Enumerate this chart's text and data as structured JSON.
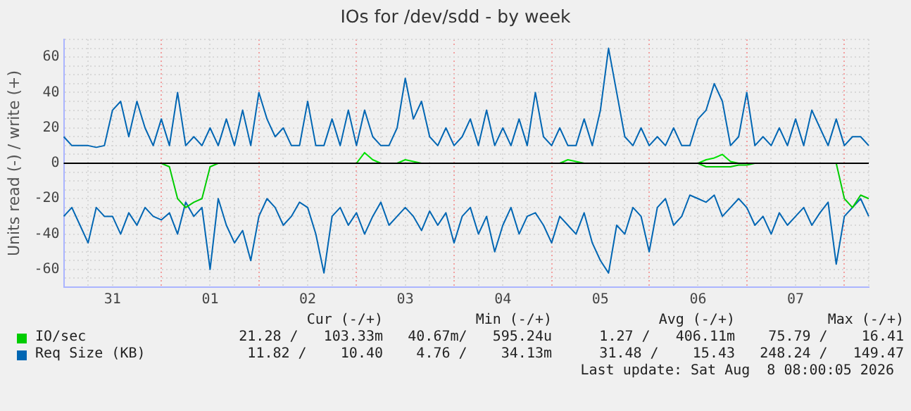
{
  "chart_data": {
    "type": "line",
    "title": "IOs for /dev/sdd - by week",
    "ylabel": "Units read (-) / write (+)",
    "categories": [
      null,
      null,
      null,
      null,
      null,
      null,
      "31",
      null,
      null,
      null,
      null,
      null,
      null,
      null,
      null,
      null,
      null,
      null,
      "01",
      null,
      null,
      null,
      null,
      null,
      null,
      null,
      null,
      null,
      null,
      null,
      "02",
      null,
      null,
      null,
      null,
      null,
      null,
      null,
      null,
      null,
      null,
      null,
      "03",
      null,
      null,
      null,
      null,
      null,
      null,
      null,
      null,
      null,
      null,
      null,
      "04",
      null,
      null,
      null,
      null,
      null,
      null,
      null,
      null,
      null,
      null,
      null,
      "05",
      null,
      null,
      null,
      null,
      null,
      null,
      null,
      null,
      null,
      null,
      null,
      "06",
      null,
      null,
      null,
      null,
      null,
      null,
      null,
      null,
      null,
      null,
      null,
      "07",
      null,
      null,
      null,
      null,
      null,
      null,
      null,
      null,
      null
    ],
    "series": [
      {
        "name": "IO/sec",
        "color": "#00cc00",
        "values": [
          null,
          null,
          null,
          null,
          null,
          null,
          null,
          null,
          null,
          null,
          null,
          null,
          0,
          -2,
          -20,
          -25,
          -22,
          -20,
          -2,
          0,
          null,
          null,
          null,
          null,
          null,
          null,
          null,
          null,
          null,
          null,
          null,
          null,
          null,
          null,
          null,
          null,
          null,
          null,
          null,
          null,
          null,
          null,
          null,
          null,
          null,
          null,
          null,
          null,
          null,
          null,
          null,
          null,
          null,
          null,
          null,
          null,
          null,
          null,
          null,
          null,
          null,
          null,
          null,
          null,
          null,
          null,
          null,
          null,
          null,
          null,
          null,
          null,
          null,
          null,
          null,
          null,
          null,
          null,
          0,
          -2,
          -2,
          -2,
          -2,
          -1,
          -1,
          0,
          null,
          null,
          null,
          null,
          null,
          null,
          null,
          null,
          null,
          0,
          -20,
          -25,
          -18,
          -20
        ]
      },
      {
        "color": "#00e000",
        "values": [
          null,
          null,
          null,
          null,
          null,
          null,
          null,
          null,
          null,
          null,
          null,
          null,
          null,
          null,
          null,
          null,
          null,
          null,
          null,
          null,
          null,
          null,
          null,
          null,
          null,
          null,
          null,
          null,
          null,
          null,
          null,
          null,
          null,
          null,
          null,
          null,
          0,
          6,
          2,
          0,
          null,
          0,
          2,
          1,
          0,
          null,
          null,
          null,
          null,
          null,
          null,
          null,
          null,
          null,
          null,
          null,
          null,
          null,
          null,
          null,
          null,
          0,
          2,
          1,
          0,
          null,
          null,
          null,
          null,
          null,
          null,
          null,
          null,
          null,
          null,
          null,
          null,
          null,
          0,
          2,
          3,
          5,
          1,
          0,
          null,
          null,
          null,
          null,
          null,
          null,
          null,
          null,
          null,
          null,
          null,
          null,
          null,
          null,
          null,
          null
        ]
      },
      {
        "name": "Req Size (KB)",
        "color": "#0066b3",
        "values": [
          -30,
          -25,
          -35,
          -45,
          -25,
          -30,
          -30,
          -40,
          -28,
          -35,
          -25,
          -30,
          -32,
          -28,
          -40,
          -22,
          -30,
          -25,
          -60,
          -20,
          -35,
          -45,
          -38,
          -55,
          -30,
          -20,
          -25,
          -35,
          -30,
          -22,
          -25,
          -40,
          -62,
          -30,
          -25,
          -35,
          -28,
          -40,
          -30,
          -22,
          -35,
          -30,
          -25,
          -30,
          -38,
          -27,
          -35,
          -28,
          -45,
          -30,
          -25,
          -40,
          -30,
          -50,
          -35,
          -25,
          -40,
          -30,
          -28,
          -35,
          -45,
          -30,
          -35,
          -40,
          -28,
          -45,
          -55,
          -62,
          -35,
          -40,
          -25,
          -30,
          -50,
          -25,
          -20,
          -35,
          -30,
          -18,
          -20,
          -22,
          -18,
          -30,
          -25,
          -20,
          -25,
          -35,
          -30,
          -40,
          -28,
          -35,
          -30,
          -25,
          -35,
          -28,
          -22,
          -57,
          -30,
          -25,
          -20,
          -30
        ]
      },
      {
        "color": "#0066b3",
        "values": [
          15,
          10,
          10,
          10,
          9,
          10,
          30,
          35,
          15,
          35,
          20,
          10,
          25,
          10,
          40,
          10,
          15,
          10,
          20,
          10,
          25,
          10,
          30,
          10,
          40,
          25,
          15,
          20,
          10,
          10,
          35,
          10,
          10,
          25,
          10,
          30,
          10,
          30,
          15,
          10,
          10,
          20,
          48,
          25,
          35,
          15,
          10,
          20,
          10,
          15,
          25,
          10,
          30,
          10,
          20,
          10,
          25,
          10,
          40,
          15,
          10,
          20,
          10,
          10,
          25,
          10,
          30,
          65,
          40,
          15,
          10,
          20,
          10,
          15,
          10,
          20,
          10,
          10,
          25,
          30,
          45,
          35,
          10,
          15,
          40,
          10,
          15,
          10,
          20,
          10,
          25,
          10,
          30,
          20,
          10,
          25,
          10,
          15,
          15,
          10
        ]
      }
    ],
    "ylim": [
      -70,
      70
    ],
    "yticks": [
      {
        "value": -70,
        "label": null
      },
      {
        "value": -65,
        "label": null
      },
      -60,
      {
        "value": -55,
        "label": null
      },
      {
        "value": -50,
        "label": null
      },
      {
        "value": -45,
        "label": null
      },
      -40,
      {
        "value": -35,
        "label": null
      },
      {
        "value": -30,
        "label": null
      },
      {
        "value": -25,
        "label": null
      },
      -20,
      {
        "value": -15,
        "label": null
      },
      {
        "value": -10,
        "label": null
      },
      {
        "value": -5,
        "label": null
      },
      0,
      {
        "value": 5,
        "label": null
      },
      {
        "value": 10,
        "label": null
      },
      {
        "value": 15,
        "label": null
      },
      20,
      {
        "value": 25,
        "label": null
      },
      {
        "value": 30,
        "label": null
      },
      {
        "value": 35,
        "label": null
      },
      40,
      {
        "value": 45,
        "label": null
      },
      {
        "value": 50,
        "label": null
      },
      {
        "value": 55,
        "label": null
      },
      60,
      {
        "value": 65,
        "label": null
      },
      {
        "value": 70,
        "label": null
      }
    ],
    "ref_lines": [
      {
        "axis": "y",
        "value": 0,
        "color": "#000000"
      }
    ],
    "grid": true,
    "legend": "bottom",
    "marker": "none",
    "line_style": "solid",
    "annotations": [
      "Cur (-/+)",
      "Min (-/+)",
      "Avg (-/+)",
      "Max (-/+)",
      "21.28 /   103.33m",
      "40.67m/   595.24u",
      "1.27 /   406.11m",
      "75.79 /    16.41",
      "11.82 /    10.40",
      "4.76 /    34.13m",
      "31.48 /    15.43",
      "248.24 /   149.47",
      "Last update: Sat Aug  8 08:00:05 2026"
    ]
  }
}
